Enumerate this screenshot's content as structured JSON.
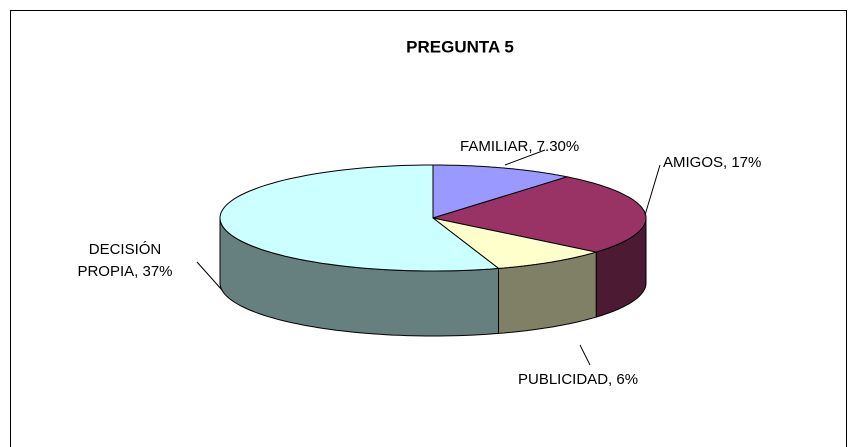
{
  "chart_data": {
    "type": "pie3d",
    "title": "PREGUNTA 5",
    "labels": [
      "FAMILIAR, 7.30%",
      "AMIGOS, 17%",
      "PUBLICIDAD, 6%",
      "DECISIÓN PROPIA, 37%"
    ],
    "values": [
      7.3,
      17,
      6,
      37
    ],
    "colors": [
      "#9999ff",
      "#993366",
      "#ffffcc",
      "#ccffff"
    ]
  }
}
